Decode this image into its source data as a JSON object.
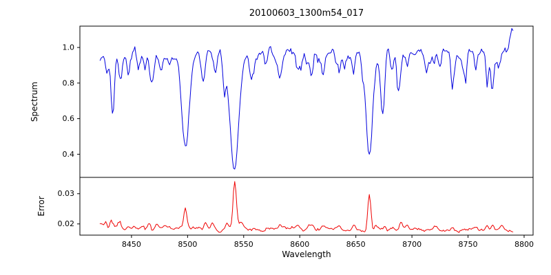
{
  "chart_data": {
    "type": "line",
    "title": "20100603_1300m54_017",
    "xlabel": "Wavelength",
    "background": "#ffffff",
    "xlim": [
      8404,
      8808
    ],
    "x_start": 8422,
    "x_end": 8790,
    "x_step": 1,
    "xticks": [
      8450,
      8500,
      8550,
      8600,
      8650,
      8700,
      8750,
      8800
    ],
    "xtick_labels": [
      "8450",
      "8500",
      "8550",
      "8600",
      "8650",
      "8700",
      "8750",
      "8800"
    ],
    "frame_color": "#000000",
    "subplots": [
      {
        "name": "spectrum",
        "ylabel": "Spectrum",
        "color": "#0000dd",
        "ylim": [
          0.27,
          1.12
        ],
        "yticks": [
          0.4,
          0.6,
          0.8,
          1.0
        ],
        "ytick_labels": [
          "0.4",
          "0.6",
          "0.8",
          "1.0"
        ],
        "main_absorption_lines": [
          {
            "wavelength": 8498,
            "min_flux": 0.44
          },
          {
            "wavelength": 8542,
            "min_flux": 0.33
          },
          {
            "wavelength": 8662,
            "min_flux": 0.36
          }
        ],
        "series": {
          "seed": 20100603,
          "base": 0.963,
          "slope": 0,
          "noise_amp": 0.08,
          "spike_prob": 0.06,
          "spike_amp": 0.12,
          "spike_sign": -1,
          "features": [
            {
              "center": 8428,
              "amp": -0.1,
              "sigma": 1.2
            },
            {
              "center": 8433,
              "amp": -0.3,
              "sigma": 1.6
            },
            {
              "center": 8440,
              "amp": -0.12,
              "sigma": 1.3
            },
            {
              "center": 8447,
              "amp": -0.1,
              "sigma": 1.2
            },
            {
              "center": 8456,
              "amp": -0.08,
              "sigma": 1.2
            },
            {
              "center": 8462,
              "amp": -0.09,
              "sigma": 1.2
            },
            {
              "center": 8468,
              "amp": -0.16,
              "sigma": 1.8
            },
            {
              "center": 8476,
              "amp": -0.07,
              "sigma": 1.2
            },
            {
              "center": 8484,
              "amp": -0.06,
              "sigma": 1.2
            },
            {
              "center": 8498,
              "amp": -0.53,
              "sigma": 3.2
            },
            {
              "center": 8514,
              "amp": -0.19,
              "sigma": 1.8
            },
            {
              "center": 8525,
              "amp": -0.09,
              "sigma": 1.4
            },
            {
              "center": 8532,
              "amp": -0.08,
              "sigma": 1.3
            },
            {
              "center": 8542,
              "amp": -0.64,
              "sigma": 4.0
            },
            {
              "center": 8556,
              "amp": -0.07,
              "sigma": 1.3
            },
            {
              "center": 8570,
              "amp": -0.08,
              "sigma": 1.3
            },
            {
              "center": 8582,
              "amp": -0.1,
              "sigma": 1.4
            },
            {
              "center": 8598,
              "amp": -0.11,
              "sigma": 1.4
            },
            {
              "center": 8611,
              "amp": -0.09,
              "sigma": 1.3
            },
            {
              "center": 8621,
              "amp": -0.1,
              "sigma": 1.4
            },
            {
              "center": 8632,
              "amp": -0.07,
              "sigma": 1.2
            },
            {
              "center": 8648,
              "amp": -0.08,
              "sigma": 1.2
            },
            {
              "center": 8662,
              "amp": -0.6,
              "sigma": 3.0
            },
            {
              "center": 8674,
              "amp": -0.32,
              "sigma": 1.8
            },
            {
              "center": 8682,
              "amp": -0.1,
              "sigma": 1.3
            },
            {
              "center": 8688,
              "amp": -0.24,
              "sigma": 1.6
            },
            {
              "center": 8696,
              "amp": -0.08,
              "sigma": 1.2
            },
            {
              "center": 8713,
              "amp": -0.11,
              "sigma": 1.4
            },
            {
              "center": 8725,
              "amp": -0.09,
              "sigma": 1.3
            },
            {
              "center": 8736,
              "amp": -0.1,
              "sigma": 1.3
            },
            {
              "center": 8747,
              "amp": -0.08,
              "sigma": 1.2
            },
            {
              "center": 8757,
              "amp": -0.09,
              "sigma": 1.3
            },
            {
              "center": 8767,
              "amp": -0.1,
              "sigma": 1.3
            },
            {
              "center": 8772,
              "amp": -0.11,
              "sigma": 1.3
            },
            {
              "center": 8789,
              "amp": 0.08,
              "sigma": 2.0
            }
          ]
        }
      },
      {
        "name": "error",
        "ylabel": "Error",
        "color": "#ee0000",
        "ylim": [
          0.0163,
          0.0354
        ],
        "yticks": [
          0.02,
          0.03
        ],
        "ytick_labels": [
          "0.02",
          "0.03"
        ],
        "main_peaks": [
          {
            "wavelength": 8498,
            "max_error": 0.025
          },
          {
            "wavelength": 8542,
            "max_error": 0.034
          },
          {
            "wavelength": 8662,
            "max_error": 0.031
          }
        ],
        "series": {
          "seed": 54017,
          "base": 0.0186,
          "slope": -2e-06,
          "noise_amp": 0.0018,
          "spike_prob": 0.05,
          "spike_amp": 0.0018,
          "spike_sign": 1,
          "features": [
            {
              "center": 8427,
              "amp": 0.002,
              "sigma": 1.0
            },
            {
              "center": 8432,
              "amp": 0.0022,
              "sigma": 1.2
            },
            {
              "center": 8440,
              "amp": 0.002,
              "sigma": 1.0
            },
            {
              "center": 8447,
              "amp": 0.0012,
              "sigma": 1.0
            },
            {
              "center": 8453,
              "amp": 0.001,
              "sigma": 1.0
            },
            {
              "center": 8460,
              "amp": 0.0012,
              "sigma": 1.0
            },
            {
              "center": 8466,
              "amp": 0.0022,
              "sigma": 1.2
            },
            {
              "center": 8472,
              "amp": 0.0012,
              "sigma": 1.0
            },
            {
              "center": 8484,
              "amp": 0.0008,
              "sigma": 1.0
            },
            {
              "center": 8498,
              "amp": 0.0068,
              "sigma": 1.4
            },
            {
              "center": 8505,
              "amp": 0.0012,
              "sigma": 1.0
            },
            {
              "center": 8516,
              "amp": 0.0022,
              "sigma": 1.2
            },
            {
              "center": 8522,
              "amp": 0.0014,
              "sigma": 1.0
            },
            {
              "center": 8536,
              "amp": 0.0015,
              "sigma": 1.2
            },
            {
              "center": 8542,
              "amp": 0.0152,
              "sigma": 1.5
            },
            {
              "center": 8548,
              "amp": 0.0018,
              "sigma": 1.5
            },
            {
              "center": 8570,
              "amp": 0.0008,
              "sigma": 1.0
            },
            {
              "center": 8582,
              "amp": 0.001,
              "sigma": 1.2
            },
            {
              "center": 8598,
              "amp": 0.0008,
              "sigma": 1.0
            },
            {
              "center": 8621,
              "amp": 0.0008,
              "sigma": 1.0
            },
            {
              "center": 8648,
              "amp": 0.0012,
              "sigma": 1.0
            },
            {
              "center": 8662,
              "amp": 0.013,
              "sigma": 1.4
            },
            {
              "center": 8668,
              "amp": 0.0012,
              "sigma": 1.0
            },
            {
              "center": 8676,
              "amp": 0.0014,
              "sigma": 1.0
            },
            {
              "center": 8690,
              "amp": 0.0024,
              "sigma": 1.3
            },
            {
              "center": 8696,
              "amp": 0.0012,
              "sigma": 1.0
            },
            {
              "center": 8713,
              "amp": 0.0008,
              "sigma": 1.0
            },
            {
              "center": 8736,
              "amp": 0.0008,
              "sigma": 1.0
            },
            {
              "center": 8757,
              "amp": 0.001,
              "sigma": 1.0
            },
            {
              "center": 8767,
              "amp": 0.0016,
              "sigma": 1.1
            },
            {
              "center": 8772,
              "amp": 0.0018,
              "sigma": 1.1
            },
            {
              "center": 8780,
              "amp": 0.001,
              "sigma": 1.0
            }
          ]
        }
      }
    ]
  }
}
